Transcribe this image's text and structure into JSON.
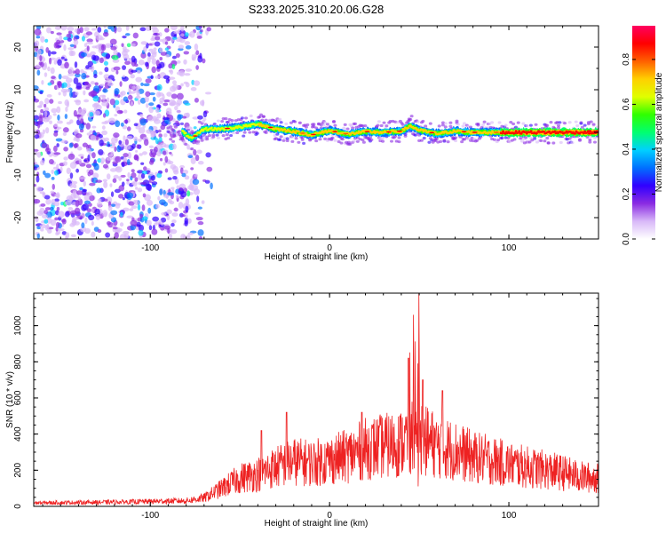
{
  "title": "S233.2025.310.20.06.G28",
  "chart_data": [
    {
      "type": "heatmap",
      "xlabel": "Height of straight line (km)",
      "ylabel": "Frequency (Hz)",
      "xlim": [
        -165,
        150
      ],
      "ylim": [
        -25,
        25
      ],
      "x_ticks": [
        -100,
        0,
        100
      ],
      "y_ticks": [
        -20,
        -10,
        0,
        10,
        20
      ],
      "grid": false,
      "colorbar": {
        "label": "Normalized spectral amplitude",
        "ticks": [
          "0.0",
          "0.2",
          "0.4",
          "0.6",
          "0.8"
        ],
        "range": [
          0,
          0.95
        ],
        "colors": [
          "#ffffff",
          "#d8b8f8",
          "#8a2be2",
          "#3000ff",
          "#0070ff",
          "#00d0ff",
          "#00ff70",
          "#30ff00",
          "#e0ff00",
          "#ffd000",
          "#ff6000",
          "#ff0000",
          "#ff0060"
        ]
      },
      "ridge": {
        "description_points": [
          {
            "x": -82,
            "y": 0.2
          },
          {
            "x": -77,
            "y": -1.5
          },
          {
            "x": -70,
            "y": 0.8
          },
          {
            "x": -60,
            "y": 0.8
          },
          {
            "x": -50,
            "y": 1.2
          },
          {
            "x": -40,
            "y": 2.0
          },
          {
            "x": -30,
            "y": 0.8
          },
          {
            "x": -20,
            "y": 0.2
          },
          {
            "x": -10,
            "y": -0.6
          },
          {
            "x": 0,
            "y": 0.4
          },
          {
            "x": 10,
            "y": -0.4
          },
          {
            "x": 20,
            "y": 0.2
          },
          {
            "x": 30,
            "y": 0.0
          },
          {
            "x": 40,
            "y": 0.3
          },
          {
            "x": 45,
            "y": 1.5
          },
          {
            "x": 50,
            "y": 0.5
          },
          {
            "x": 60,
            "y": -0.3
          },
          {
            "x": 70,
            "y": 0.3
          },
          {
            "x": 80,
            "y": 0.0
          },
          {
            "x": 100,
            "y": 0.0
          },
          {
            "x": 150,
            "y": 0.0
          }
        ],
        "noise_region_x": [
          -165,
          -65
        ]
      }
    },
    {
      "type": "line",
      "xlabel": "Height of straight line (km)",
      "ylabel": "SNR (10 * v/v)",
      "xlim": [
        -165,
        150
      ],
      "ylim": [
        0,
        1180
      ],
      "x_ticks": [
        -100,
        0,
        100
      ],
      "y_ticks": [
        0,
        200,
        400,
        600,
        800,
        1000
      ],
      "grid": false,
      "series": [
        {
          "color": "#ee2222",
          "envelope": [
            {
              "x": -165,
              "y": 25
            },
            {
              "x": -120,
              "y": 30
            },
            {
              "x": -80,
              "y": 40
            },
            {
              "x": -70,
              "y": 60
            },
            {
              "x": -60,
              "y": 130
            },
            {
              "x": -50,
              "y": 200
            },
            {
              "x": -40,
              "y": 230
            },
            {
              "x": -30,
              "y": 280
            },
            {
              "x": -20,
              "y": 320
            },
            {
              "x": -10,
              "y": 310
            },
            {
              "x": 0,
              "y": 330
            },
            {
              "x": 10,
              "y": 360
            },
            {
              "x": 20,
              "y": 410
            },
            {
              "x": 30,
              "y": 430
            },
            {
              "x": 40,
              "y": 450
            },
            {
              "x": 45,
              "y": 500
            },
            {
              "x": 50,
              "y": 440
            },
            {
              "x": 55,
              "y": 470
            },
            {
              "x": 60,
              "y": 430
            },
            {
              "x": 70,
              "y": 400
            },
            {
              "x": 80,
              "y": 350
            },
            {
              "x": 90,
              "y": 330
            },
            {
              "x": 100,
              "y": 300
            },
            {
              "x": 110,
              "y": 280
            },
            {
              "x": 120,
              "y": 260
            },
            {
              "x": 130,
              "y": 240
            },
            {
              "x": 140,
              "y": 210
            },
            {
              "x": 150,
              "y": 200
            }
          ],
          "peaks": [
            {
              "x": 47,
              "y": 1060
            },
            {
              "x": 50,
              "y": 1180
            },
            {
              "x": 44,
              "y": 820
            },
            {
              "x": 52,
              "y": 700
            },
            {
              "x": 63,
              "y": 640
            },
            {
              "x": 18,
              "y": 520
            },
            {
              "x": -24,
              "y": 520
            },
            {
              "x": -38,
              "y": 420
            }
          ]
        }
      ]
    }
  ]
}
